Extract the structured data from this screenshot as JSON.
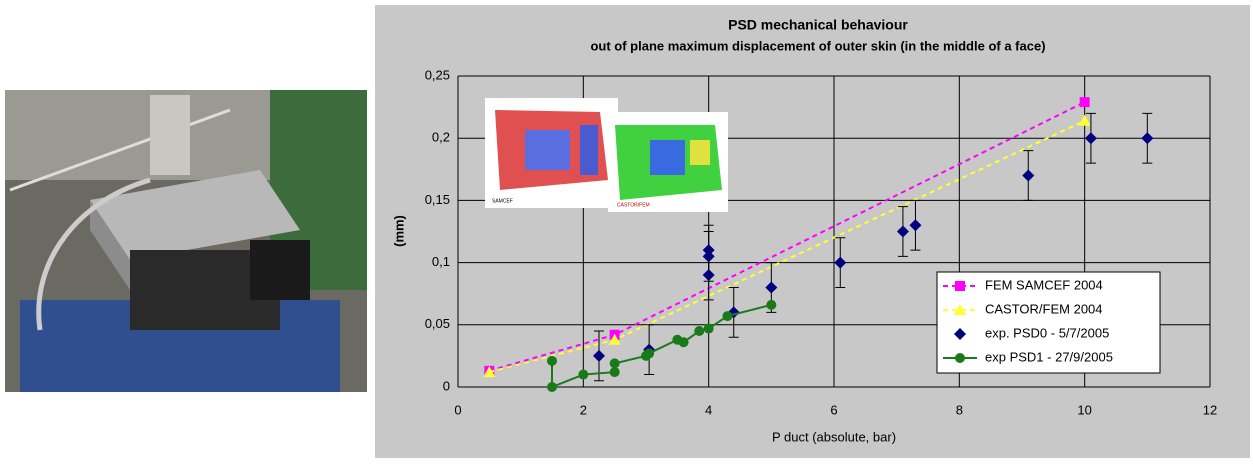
{
  "chart_data": {
    "type": "scatter",
    "title": "PSD mechanical behaviour",
    "subtitle": "out of plane maximum displacement of outer skin (in the middle of a face)",
    "x_label": "P duct (absolute, bar)",
    "y_label": "(mm)",
    "inset_labels": [
      "SAMCEF",
      "CASTOR/FEM"
    ],
    "xlim": [
      0,
      12
    ],
    "xticks": [
      0,
      2,
      4,
      6,
      8,
      10,
      12
    ],
    "ylim": [
      0,
      0.25
    ],
    "yticks": [
      0,
      {
        "value": 0.05,
        "label": "0,05"
      },
      {
        "value": 0.1,
        "label": "0,1"
      },
      {
        "value": 0.15,
        "label": "0,15"
      },
      {
        "value": 0.2,
        "label": "0,2"
      },
      {
        "value": 0.25,
        "label": "0,25"
      }
    ],
    "grid": true,
    "legend": "lower right",
    "series": [
      {
        "name": "FEM SAMCEF 2004",
        "color": "#ff00ff",
        "marker": "square",
        "line": "dashed",
        "x": [
          0.5,
          2.5,
          10
        ],
        "values": [
          0.013,
          0.042,
          0.229
        ]
      },
      {
        "name": "CASTOR/FEM 2004",
        "color": "#ffff33",
        "marker": "triangle",
        "line": "dashed",
        "x": [
          0.5,
          2.5,
          10
        ],
        "values": [
          0.012,
          0.038,
          0.214
        ]
      },
      {
        "name": "exp. PSD0 - 5/7/2005",
        "color": "#000080",
        "marker": "diamond",
        "line": "none",
        "x": [
          2.25,
          3.05,
          4,
          4,
          4,
          4.4,
          5,
          6.1,
          7.1,
          7.3,
          9.1,
          10.1,
          11
        ],
        "values": [
          0.025,
          0.03,
          0.11,
          0.105,
          0.09,
          0.06,
          0.08,
          0.1,
          0.125,
          0.13,
          0.17,
          0.2,
          0.2
        ],
        "errors": [
          0.02,
          0.02,
          0.02,
          0.02,
          0.02,
          0.02,
          0.02,
          0.02,
          0.02,
          0.02,
          0.02,
          0.02,
          0.02
        ]
      },
      {
        "name": "exp PSD1 - 27/9/2005",
        "color": "#1a7a1a",
        "marker": "circle",
        "line": "solid",
        "x": [
          1.5,
          1.5,
          2,
          2.5,
          2.5,
          3,
          3.05,
          3.5,
          3.6,
          3.85,
          4,
          4.3,
          5
        ],
        "values": [
          0.021,
          0,
          0.01,
          0.012,
          0.019,
          0.025,
          0.027,
          0.038,
          0.036,
          0.045,
          0.047,
          0.057,
          0.066
        ]
      }
    ]
  }
}
